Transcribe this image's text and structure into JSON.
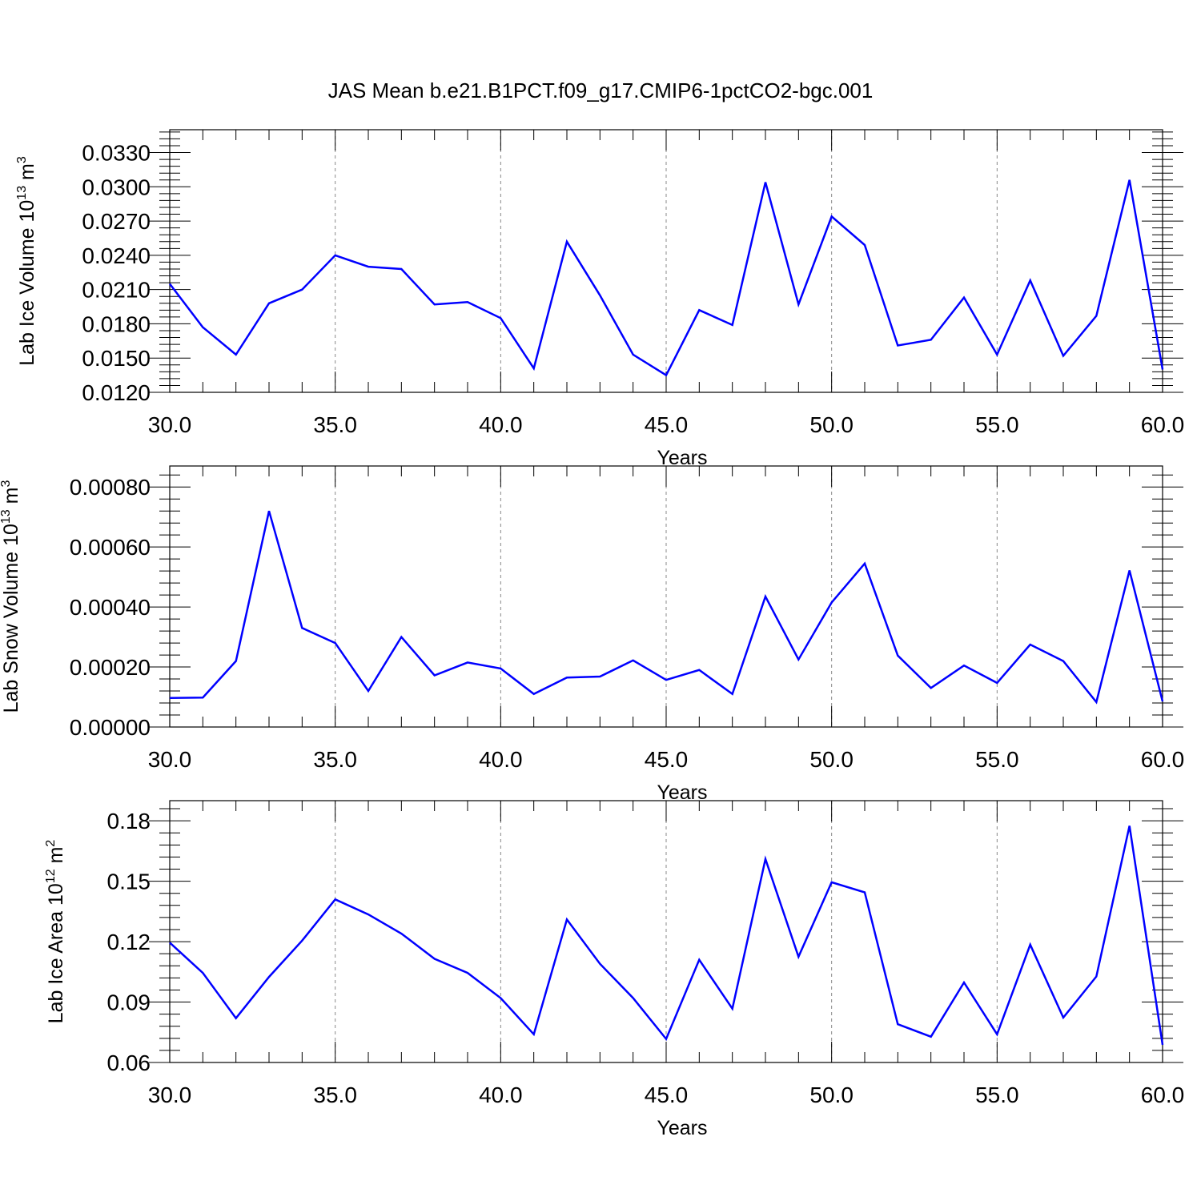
{
  "title": "JAS Mean b.e21.B1PCT.f09_g17.CMIP6-1pctCO2-bgc.001",
  "line_color": "#0000ff",
  "chart_data": [
    {
      "type": "line",
      "xlabel": "Years",
      "ylabel": "Lab Ice Volume 10",
      "ylabel_exp": "13",
      "ylabel_unit": " m",
      "ylabel_unit_exp": "3",
      "xlim": [
        30,
        60
      ],
      "ylim": [
        0.012,
        0.035
      ],
      "xticks": [
        "30.0",
        "35.0",
        "40.0",
        "45.0",
        "50.0",
        "55.0",
        "60.0"
      ],
      "yticks": [
        "0.0120",
        "0.0150",
        "0.0180",
        "0.0210",
        "0.0240",
        "0.0270",
        "0.0300",
        "0.0330"
      ],
      "ytick_values": [
        0.012,
        0.015,
        0.018,
        0.021,
        0.024,
        0.027,
        0.03,
        0.033
      ],
      "grid": "vertical dashed at major x ticks",
      "series": [
        {
          "x": [
            30,
            31,
            32,
            33,
            34,
            35,
            36,
            37,
            38,
            39,
            40,
            41,
            42,
            43,
            44,
            45,
            46,
            47,
            48,
            49,
            50,
            51,
            52,
            53,
            54,
            55,
            56,
            57,
            58,
            59,
            60
          ],
          "values": [
            0.0215,
            0.0177,
            0.0153,
            0.0198,
            0.021,
            0.024,
            0.023,
            0.0228,
            0.0197,
            0.0199,
            0.0185,
            0.0141,
            0.0252,
            0.0205,
            0.0153,
            0.0135,
            0.0192,
            0.0179,
            0.0304,
            0.0197,
            0.0274,
            0.0249,
            0.0161,
            0.0166,
            0.0203,
            0.0153,
            0.0218,
            0.0152,
            0.0187,
            0.0306,
            0.014
          ]
        }
      ]
    },
    {
      "type": "line",
      "xlabel": "Years",
      "ylabel": "Lab Snow Volume 10",
      "ylabel_exp": "13",
      "ylabel_unit": " m",
      "ylabel_unit_exp": "3",
      "xlim": [
        30,
        60
      ],
      "ylim": [
        0.0,
        0.00087
      ],
      "xticks": [
        "30.0",
        "35.0",
        "40.0",
        "45.0",
        "50.0",
        "55.0",
        "60.0"
      ],
      "yticks": [
        "0.00000",
        "0.00020",
        "0.00040",
        "0.00060",
        "0.00080"
      ],
      "ytick_values": [
        0.0,
        0.0002,
        0.0004,
        0.0006,
        0.0008
      ],
      "grid": "vertical dashed at major x ticks",
      "series": [
        {
          "x": [
            30,
            31,
            32,
            33,
            34,
            35,
            36,
            37,
            38,
            39,
            40,
            41,
            42,
            43,
            44,
            45,
            46,
            47,
            48,
            49,
            50,
            51,
            52,
            53,
            54,
            55,
            56,
            57,
            58,
            59,
            60
          ],
          "values": [
            9.7e-05,
            9.8e-05,
            0.00022,
            0.00072,
            0.00033,
            0.00028,
            0.00012,
            0.0003,
            0.000172,
            0.000215,
            0.000195,
            0.00011,
            0.000165,
            0.000168,
            0.000222,
            0.000157,
            0.00019,
            0.00011,
            0.000435,
            0.000225,
            0.000415,
            0.000545,
            0.000238,
            0.00013,
            0.000205,
            0.000147,
            0.000275,
            0.00022,
            8.3e-05,
            0.000522,
            8.5e-05
          ]
        }
      ]
    },
    {
      "type": "line",
      "xlabel": "Years",
      "ylabel": "Lab Ice Area 10",
      "ylabel_exp": "12",
      "ylabel_unit": " m",
      "ylabel_unit_exp": "2",
      "xlim": [
        30,
        60
      ],
      "ylim": [
        0.06,
        0.19
      ],
      "xticks": [
        "30.0",
        "35.0",
        "40.0",
        "45.0",
        "50.0",
        "55.0",
        "60.0"
      ],
      "yticks": [
        "0.06",
        "0.09",
        "0.12",
        "0.15",
        "0.18"
      ],
      "ytick_values": [
        0.06,
        0.09,
        0.12,
        0.15,
        0.18
      ],
      "grid": "vertical dashed at major x ticks",
      "series": [
        {
          "x": [
            30,
            31,
            32,
            33,
            34,
            35,
            36,
            37,
            38,
            39,
            40,
            41,
            42,
            43,
            44,
            45,
            46,
            47,
            48,
            49,
            50,
            51,
            52,
            53,
            54,
            55,
            56,
            57,
            58,
            59,
            60
          ],
          "values": [
            0.1195,
            0.1045,
            0.082,
            0.1025,
            0.1205,
            0.141,
            0.1335,
            0.124,
            0.1115,
            0.1045,
            0.092,
            0.074,
            0.131,
            0.109,
            0.092,
            0.0717,
            0.111,
            0.0867,
            0.161,
            0.1125,
            0.1495,
            0.1445,
            0.079,
            0.0728,
            0.0997,
            0.074,
            0.1185,
            0.0823,
            0.1027,
            0.1775,
            0.0688
          ]
        }
      ]
    }
  ]
}
